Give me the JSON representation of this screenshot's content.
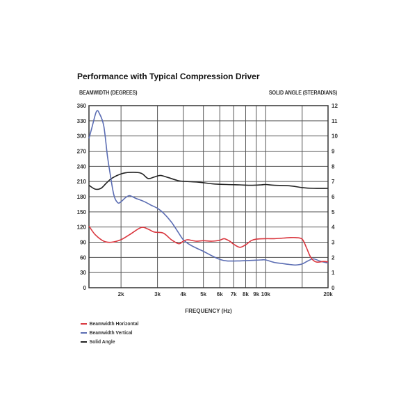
{
  "chart_data": {
    "type": "line",
    "title": "Performance with Typical Compression Driver",
    "ylabel_left": "BEAMWIDTH (DEGREES)",
    "ylabel_right": "SOLID ANGLE (STERADIANS)",
    "xlabel": "FREQUENCY (Hz)",
    "x_scale": "log",
    "xlim": [
      1400,
      20000
    ],
    "ylim_left": [
      0,
      360
    ],
    "ylim_right": [
      0,
      12
    ],
    "left_ticks": [
      0,
      30,
      60,
      90,
      120,
      150,
      180,
      210,
      240,
      270,
      300,
      330,
      360
    ],
    "right_ticks": [
      0,
      1,
      2,
      3,
      4,
      5,
      6,
      7,
      8,
      9,
      10,
      11,
      12
    ],
    "x_ticks": [
      {
        "value": 2000,
        "label": "2k"
      },
      {
        "value": 3000,
        "label": "3k"
      },
      {
        "value": 4000,
        "label": "4k"
      },
      {
        "value": 5000,
        "label": "5k"
      },
      {
        "value": 6000,
        "label": "6k"
      },
      {
        "value": 7000,
        "label": "7k"
      },
      {
        "value": 8000,
        "label": "8k"
      },
      {
        "value": 9000,
        "label": "9k"
      },
      {
        "value": 10000,
        "label": "10k"
      },
      {
        "value": 20000,
        "label": "20k"
      }
    ],
    "extra_gridlines_x": [
      15000
    ],
    "grid": true,
    "series": [
      {
        "name": "Beamwidth Horizontal",
        "color": "#d9363e",
        "axis": "left",
        "points": [
          [
            1400,
            122
          ],
          [
            1500,
            105
          ],
          [
            1650,
            92
          ],
          [
            1800,
            90
          ],
          [
            2000,
            95
          ],
          [
            2200,
            105
          ],
          [
            2500,
            119
          ],
          [
            2700,
            116
          ],
          [
            2900,
            110
          ],
          [
            3200,
            108
          ],
          [
            3500,
            95
          ],
          [
            3800,
            87
          ],
          [
            4000,
            92
          ],
          [
            4200,
            95
          ],
          [
            4600,
            92
          ],
          [
            5000,
            93
          ],
          [
            5500,
            92
          ],
          [
            6000,
            94
          ],
          [
            6300,
            97
          ],
          [
            6700,
            92
          ],
          [
            7000,
            86
          ],
          [
            7500,
            80
          ],
          [
            8000,
            85
          ],
          [
            8500,
            93
          ],
          [
            9000,
            96
          ],
          [
            10000,
            97
          ],
          [
            11000,
            97
          ],
          [
            12000,
            98
          ],
          [
            13000,
            99
          ],
          [
            14000,
            99
          ],
          [
            15000,
            96
          ],
          [
            15700,
            80
          ],
          [
            16500,
            60
          ],
          [
            17500,
            51
          ],
          [
            19000,
            52
          ],
          [
            20000,
            51
          ]
        ]
      },
      {
        "name": "Beamwidth Vertical",
        "color": "#5b6db3",
        "axis": "left",
        "points": [
          [
            1400,
            295
          ],
          [
            1450,
            318
          ],
          [
            1520,
            348
          ],
          [
            1570,
            345
          ],
          [
            1650,
            320
          ],
          [
            1720,
            260
          ],
          [
            1780,
            220
          ],
          [
            1850,
            182
          ],
          [
            1930,
            168
          ],
          [
            2000,
            170
          ],
          [
            2100,
            178
          ],
          [
            2200,
            182
          ],
          [
            2350,
            177
          ],
          [
            2600,
            170
          ],
          [
            2800,
            163
          ],
          [
            3000,
            157
          ],
          [
            3200,
            148
          ],
          [
            3500,
            130
          ],
          [
            3800,
            108
          ],
          [
            4000,
            95
          ],
          [
            4300,
            85
          ],
          [
            4700,
            77
          ],
          [
            5000,
            72
          ],
          [
            5500,
            63
          ],
          [
            6000,
            56
          ],
          [
            6500,
            53
          ],
          [
            7500,
            53
          ],
          [
            8500,
            54
          ],
          [
            9500,
            55
          ],
          [
            10000,
            55
          ],
          [
            11000,
            50
          ],
          [
            12000,
            48
          ],
          [
            13000,
            46
          ],
          [
            14000,
            45
          ],
          [
            15000,
            47
          ],
          [
            16000,
            53
          ],
          [
            17000,
            57
          ],
          [
            18500,
            52
          ],
          [
            20000,
            49
          ]
        ]
      },
      {
        "name": "Solid Angle",
        "color": "#222222",
        "axis": "right",
        "points": [
          [
            1400,
            6.75
          ],
          [
            1500,
            6.5
          ],
          [
            1600,
            6.55
          ],
          [
            1700,
            6.9
          ],
          [
            1800,
            7.2
          ],
          [
            2000,
            7.5
          ],
          [
            2200,
            7.6
          ],
          [
            2500,
            7.55
          ],
          [
            2700,
            7.2
          ],
          [
            2900,
            7.3
          ],
          [
            3100,
            7.4
          ],
          [
            3400,
            7.25
          ],
          [
            3800,
            7.05
          ],
          [
            4200,
            7.0
          ],
          [
            4800,
            6.95
          ],
          [
            5500,
            6.85
          ],
          [
            6500,
            6.8
          ],
          [
            7500,
            6.78
          ],
          [
            8500,
            6.75
          ],
          [
            9500,
            6.78
          ],
          [
            10000,
            6.8
          ],
          [
            11000,
            6.75
          ],
          [
            13000,
            6.72
          ],
          [
            15000,
            6.6
          ],
          [
            17000,
            6.55
          ],
          [
            20000,
            6.55
          ]
        ]
      }
    ],
    "legend_placement": "bottom-left"
  }
}
